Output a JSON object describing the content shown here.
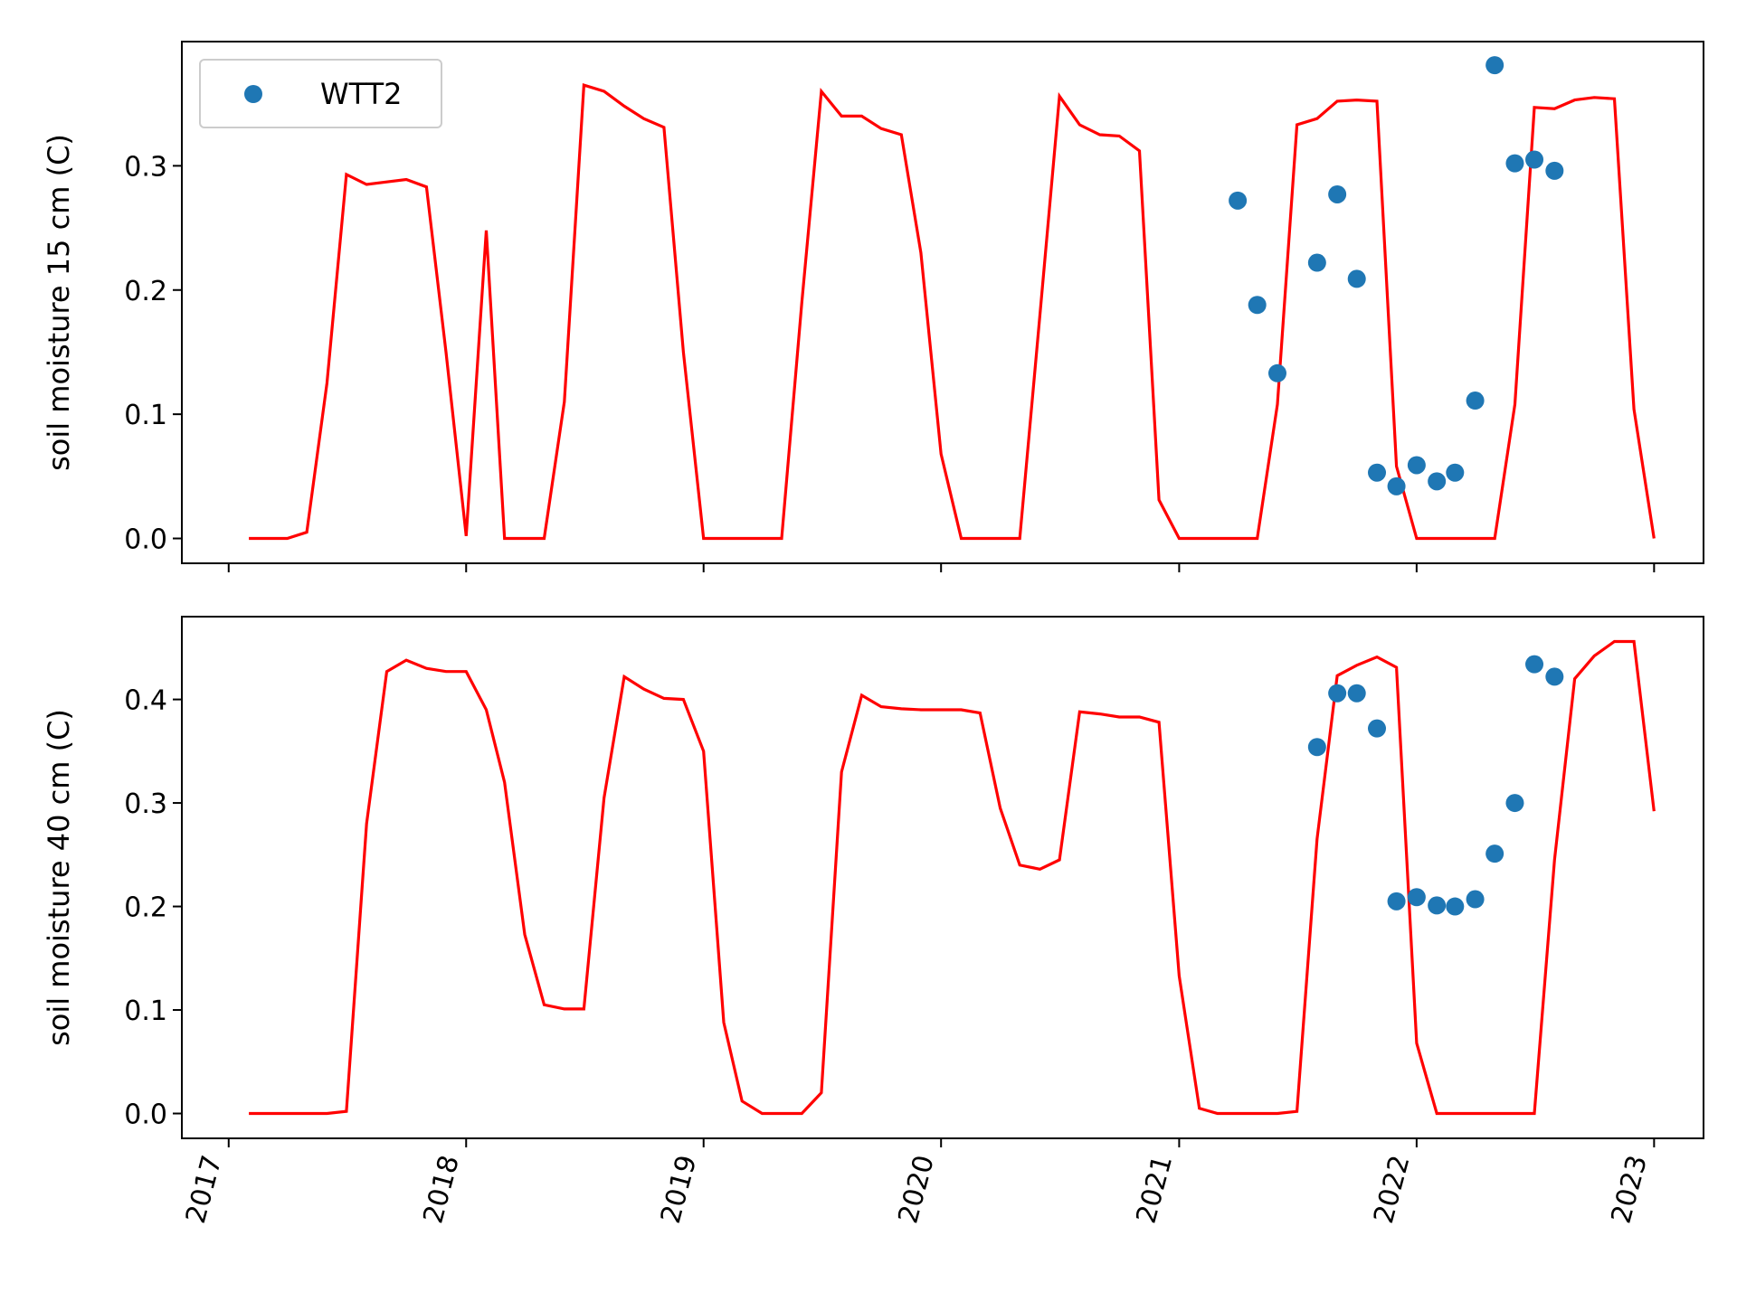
{
  "chart_data": [
    {
      "type": "line+scatter",
      "ylabel": "soil moisture 15 cm (C)",
      "ylim": [
        -0.02,
        0.4
      ],
      "yticks": [
        0.0,
        0.1,
        0.2,
        0.3
      ],
      "ytick_labels": [
        "0.0",
        "0.1",
        "0.2",
        "0.3"
      ],
      "xlim": [
        "2016-10-21",
        "2023-03-18"
      ],
      "xtick_labels_visible": false,
      "legend": {
        "placement": "upper-left",
        "entries": [
          {
            "label": "WTT2",
            "marker": "circle",
            "color": "#1f77b4"
          }
        ]
      },
      "series": [
        {
          "kind": "line",
          "color": "#ff0000",
          "x": [
            "2017-02-01",
            "2017-03-01",
            "2017-04-01",
            "2017-05-01",
            "2017-06-01",
            "2017-07-01",
            "2017-08-01",
            "2017-09-01",
            "2017-10-01",
            "2017-11-01",
            "2017-12-01",
            "2018-01-01",
            "2018-02-01",
            "2018-03-01",
            "2018-04-01",
            "2018-05-01",
            "2018-06-01",
            "2018-07-01",
            "2018-08-01",
            "2018-09-01",
            "2018-10-01",
            "2018-11-01",
            "2018-12-01",
            "2019-01-01",
            "2019-02-01",
            "2019-03-01",
            "2019-04-01",
            "2019-05-01",
            "2019-06-01",
            "2019-07-01",
            "2019-08-01",
            "2019-09-01",
            "2019-10-01",
            "2019-11-01",
            "2019-12-01",
            "2020-01-01",
            "2020-02-01",
            "2020-03-01",
            "2020-04-01",
            "2020-05-01",
            "2020-06-01",
            "2020-07-01",
            "2020-08-01",
            "2020-09-01",
            "2020-10-01",
            "2020-11-01",
            "2020-12-01",
            "2021-01-01",
            "2021-02-01",
            "2021-03-01",
            "2021-04-01",
            "2021-05-01",
            "2021-06-01",
            "2021-07-01",
            "2021-08-01",
            "2021-09-01",
            "2021-10-01",
            "2021-11-01",
            "2021-12-01",
            "2022-01-01",
            "2022-02-01",
            "2022-03-01",
            "2022-04-01",
            "2022-05-01",
            "2022-06-01",
            "2022-07-01",
            "2022-08-01",
            "2022-09-01",
            "2022-10-01",
            "2022-11-01",
            "2022-12-01",
            "2023-01-01"
          ],
          "y": [
            0.0,
            0.0,
            0.0,
            0.005,
            0.125,
            0.293,
            0.285,
            0.287,
            0.289,
            0.283,
            0.15,
            0.002,
            0.248,
            0.0,
            0.0,
            0.0,
            0.11,
            0.365,
            0.36,
            0.348,
            0.338,
            0.331,
            0.15,
            0.0,
            0.0,
            0.0,
            0.0,
            0.0,
            0.19,
            0.36,
            0.34,
            0.34,
            0.33,
            0.325,
            0.23,
            0.068,
            0.0,
            0.0,
            0.0,
            0.0,
            0.18,
            0.356,
            0.333,
            0.325,
            0.324,
            0.312,
            0.031,
            0.0,
            0.0,
            0.0,
            0.0,
            0.0,
            0.108,
            0.333,
            0.338,
            0.352,
            0.353,
            0.352,
            0.058,
            0.0,
            0.0,
            0.0,
            0.0,
            0.0,
            0.108,
            0.347,
            0.346,
            0.353,
            0.355,
            0.354,
            0.104,
            0.0
          ]
        },
        {
          "kind": "scatter",
          "name": "WTT2",
          "color": "#1f77b4",
          "x": [
            "2021-04-01",
            "2021-05-01",
            "2021-06-01",
            "2021-08-01",
            "2021-09-01",
            "2021-10-01",
            "2021-11-01",
            "2021-12-01",
            "2022-01-01",
            "2022-02-01",
            "2022-03-01",
            "2022-04-01",
            "2022-05-01",
            "2022-06-01",
            "2022-07-01",
            "2022-08-01"
          ],
          "y": [
            0.272,
            0.188,
            0.133,
            0.222,
            0.277,
            0.209,
            0.053,
            0.042,
            0.059,
            0.046,
            0.053,
            0.111,
            0.381,
            0.302,
            0.305,
            0.296
          ]
        }
      ]
    },
    {
      "type": "line+scatter",
      "ylabel": "soil moisture 40 cm (C)",
      "ylim": [
        -0.024,
        0.48
      ],
      "yticks": [
        0.0,
        0.1,
        0.2,
        0.3,
        0.4
      ],
      "ytick_labels": [
        "0.0",
        "0.1",
        "0.2",
        "0.3",
        "0.4"
      ],
      "xlim": [
        "2016-10-21",
        "2023-03-18"
      ],
      "xticks": [
        "2017-01-01",
        "2018-01-01",
        "2019-01-01",
        "2020-01-01",
        "2021-01-01",
        "2022-01-01",
        "2023-01-01"
      ],
      "xtick_labels": [
        "2017",
        "2018",
        "2019",
        "2020",
        "2021",
        "2022",
        "2023"
      ],
      "xtick_rotation": 75,
      "series": [
        {
          "kind": "line",
          "color": "#ff0000",
          "x": [
            "2017-02-01",
            "2017-03-01",
            "2017-04-01",
            "2017-05-01",
            "2017-06-01",
            "2017-07-01",
            "2017-08-01",
            "2017-09-01",
            "2017-10-01",
            "2017-11-01",
            "2017-12-01",
            "2018-01-01",
            "2018-02-01",
            "2018-03-01",
            "2018-04-01",
            "2018-05-01",
            "2018-06-01",
            "2018-07-01",
            "2018-08-01",
            "2018-09-01",
            "2018-10-01",
            "2018-11-01",
            "2018-12-01",
            "2019-01-01",
            "2019-02-01",
            "2019-03-01",
            "2019-04-01",
            "2019-05-01",
            "2019-06-01",
            "2019-07-01",
            "2019-08-01",
            "2019-09-01",
            "2019-10-01",
            "2019-11-01",
            "2019-12-01",
            "2020-01-01",
            "2020-02-01",
            "2020-03-01",
            "2020-04-01",
            "2020-05-01",
            "2020-06-01",
            "2020-07-01",
            "2020-08-01",
            "2020-09-01",
            "2020-10-01",
            "2020-11-01",
            "2020-12-01",
            "2021-01-01",
            "2021-02-01",
            "2021-03-01",
            "2021-04-01",
            "2021-05-01",
            "2021-06-01",
            "2021-07-01",
            "2021-08-01",
            "2021-09-01",
            "2021-10-01",
            "2021-11-01",
            "2021-12-01",
            "2022-01-01",
            "2022-02-01",
            "2022-03-01",
            "2022-04-01",
            "2022-05-01",
            "2022-06-01",
            "2022-07-01",
            "2022-08-01",
            "2022-09-01",
            "2022-10-01",
            "2022-11-01",
            "2022-12-01",
            "2023-01-01"
          ],
          "y": [
            0.0,
            0.0,
            0.0,
            0.0,
            0.0,
            0.002,
            0.28,
            0.427,
            0.438,
            0.43,
            0.427,
            0.427,
            0.39,
            0.32,
            0.173,
            0.105,
            0.101,
            0.101,
            0.305,
            0.422,
            0.41,
            0.401,
            0.4,
            0.35,
            0.088,
            0.012,
            0.0,
            0.0,
            0.0,
            0.02,
            0.33,
            0.404,
            0.393,
            0.391,
            0.39,
            0.39,
            0.39,
            0.387,
            0.295,
            0.24,
            0.236,
            0.245,
            0.388,
            0.386,
            0.383,
            0.383,
            0.378,
            0.133,
            0.005,
            0.0,
            0.0,
            0.0,
            0.0,
            0.002,
            0.265,
            0.423,
            0.433,
            0.441,
            0.431,
            0.068,
            0.0,
            0.0,
            0.0,
            0.0,
            0.0,
            0.0,
            0.245,
            0.42,
            0.442,
            0.456,
            0.456,
            0.292
          ]
        },
        {
          "kind": "scatter",
          "name": "WTT2",
          "color": "#1f77b4",
          "x": [
            "2021-08-01",
            "2021-09-01",
            "2021-10-01",
            "2021-11-01",
            "2021-12-01",
            "2022-01-01",
            "2022-02-01",
            "2022-03-01",
            "2022-04-01",
            "2022-05-01",
            "2022-06-01",
            "2022-07-01",
            "2022-08-01"
          ],
          "y": [
            0.354,
            0.406,
            0.406,
            0.372,
            0.205,
            0.209,
            0.201,
            0.2,
            0.207,
            0.251,
            0.3,
            0.434,
            0.422
          ]
        }
      ]
    }
  ]
}
